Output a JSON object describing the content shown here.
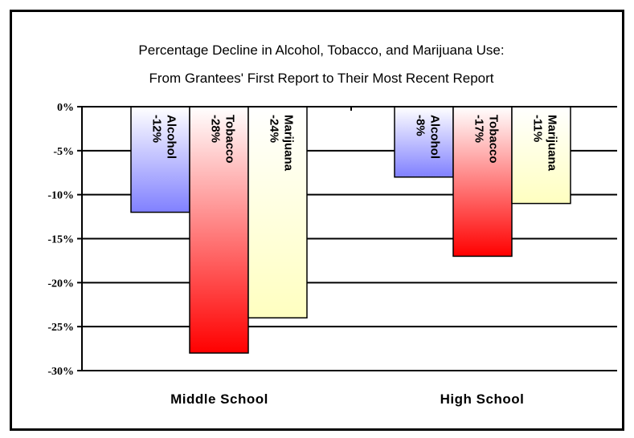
{
  "chart_data": {
    "type": "bar",
    "title": "Percentage Decline in Alcohol, Tobacco, and Marijuana Use:",
    "subtitle": "From Grantees' First Report to Their Most Recent Report",
    "categories": [
      "Middle School",
      "High School"
    ],
    "series": [
      {
        "name": "Alcohol",
        "values": [
          -12,
          -8
        ],
        "labels": [
          "-12%",
          "-8%"
        ],
        "color_top": "#ffffff",
        "color_bottom": "#8080ff"
      },
      {
        "name": "Tobacco",
        "values": [
          -28,
          -17
        ],
        "labels": [
          "-28%",
          "-17%"
        ],
        "color_top": "#ffffff",
        "color_bottom": "#ff0000"
      },
      {
        "name": "Marijuana",
        "values": [
          -24,
          -11
        ],
        "labels": [
          "-24%",
          "-11%"
        ],
        "color_top": "#ffffff",
        "color_bottom": "#ffffc0"
      }
    ],
    "yticks": [
      "0%",
      "-5%",
      "-10%",
      "-15%",
      "-20%",
      "-25%",
      "-30%"
    ],
    "ylim": [
      -30,
      0
    ],
    "grid": true,
    "legend": "none"
  }
}
